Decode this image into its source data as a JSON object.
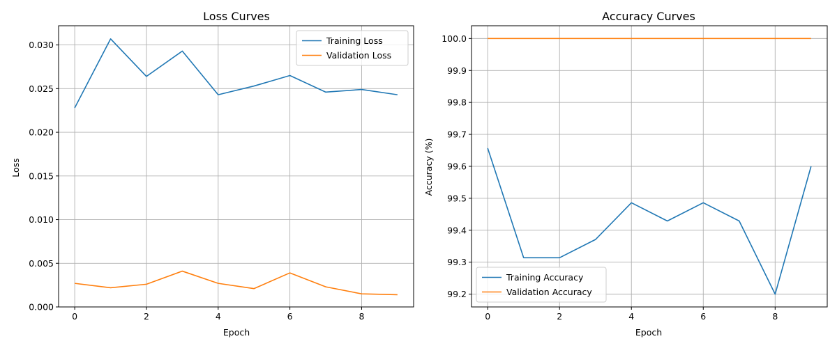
{
  "colors": {
    "training": "#1f77b4",
    "validation": "#ff7f0e"
  },
  "chart_data": [
    {
      "type": "line",
      "title": "Loss Curves",
      "xlabel": "Epoch",
      "ylabel": "Loss",
      "xlim": [
        -0.45,
        9.45
      ],
      "ylim": [
        0,
        0.0322
      ],
      "x_ticks": [
        0,
        2,
        4,
        6,
        8
      ],
      "x_tick_labels": [
        "0",
        "2",
        "4",
        "6",
        "8"
      ],
      "y_ticks": [
        0,
        0.005,
        0.01,
        0.015,
        0.02,
        0.025,
        0.03
      ],
      "y_tick_labels": [
        "0.000",
        "0.005",
        "0.010",
        "0.015",
        "0.020",
        "0.025",
        "0.030"
      ],
      "grid": true,
      "legend_position": "top-right",
      "x": [
        0,
        1,
        2,
        3,
        4,
        5,
        6,
        7,
        8,
        9
      ],
      "series": [
        {
          "name": "Training Loss",
          "color_key": "training",
          "values": [
            0.0228,
            0.0307,
            0.0264,
            0.0293,
            0.0243,
            0.0253,
            0.0265,
            0.0246,
            0.0249,
            0.0243
          ]
        },
        {
          "name": "Validation Loss",
          "color_key": "validation",
          "values": [
            0.0027,
            0.0022,
            0.0026,
            0.0041,
            0.0027,
            0.0021,
            0.0039,
            0.0023,
            0.0015,
            0.0014
          ]
        }
      ]
    },
    {
      "type": "line",
      "title": "Accuracy Curves",
      "xlabel": "Epoch",
      "ylabel": "Accuracy (%)",
      "xlim": [
        -0.45,
        9.45
      ],
      "ylim": [
        99.16,
        100.04
      ],
      "x_ticks": [
        0,
        2,
        4,
        6,
        8
      ],
      "x_tick_labels": [
        "0",
        "2",
        "4",
        "6",
        "8"
      ],
      "y_ticks": [
        99.2,
        99.3,
        99.4,
        99.5,
        99.6,
        99.7,
        99.8,
        99.9,
        100.0
      ],
      "y_tick_labels": [
        "99.2",
        "99.3",
        "99.4",
        "99.5",
        "99.6",
        "99.7",
        "99.8",
        "99.9",
        "100.0"
      ],
      "grid": true,
      "legend_position": "bottom-left",
      "x": [
        0,
        1,
        2,
        3,
        4,
        5,
        6,
        7,
        8,
        9
      ],
      "series": [
        {
          "name": "Training Accuracy",
          "color_key": "training",
          "values": [
            99.657,
            99.314,
            99.314,
            99.371,
            99.486,
            99.429,
            99.486,
            99.429,
            99.2,
            99.6
          ]
        },
        {
          "name": "Validation Accuracy",
          "color_key": "validation",
          "values": [
            100.0,
            100.0,
            100.0,
            100.0,
            100.0,
            100.0,
            100.0,
            100.0,
            100.0,
            100.0
          ]
        }
      ]
    }
  ]
}
